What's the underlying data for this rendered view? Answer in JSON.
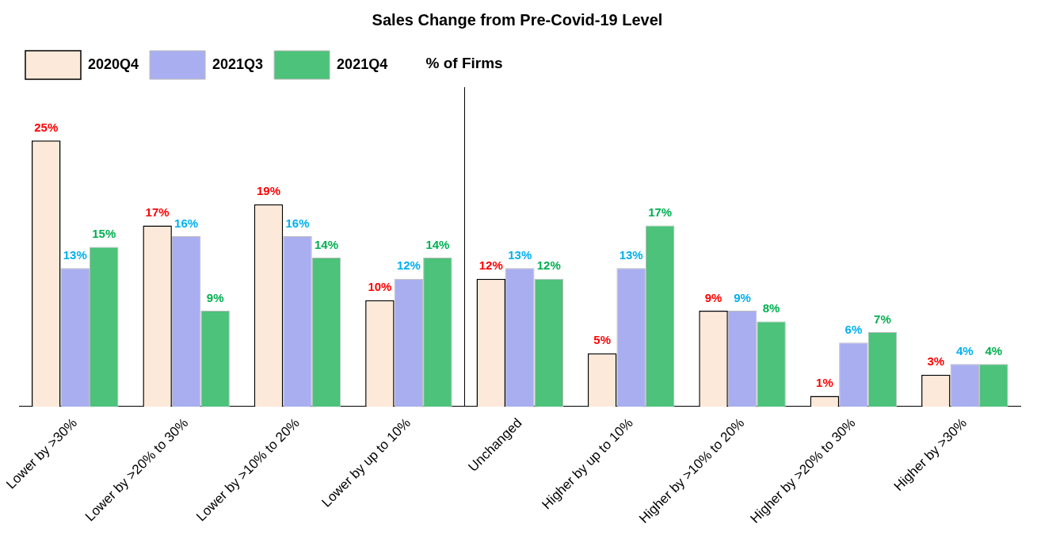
{
  "chart_data": {
    "type": "bar",
    "title": "Sales Change from Pre-Covid-19 Level",
    "ylabel": "% of Firms",
    "categories": [
      "Lower by >30%",
      "Lower by >20% to 30%",
      "Lower by >10% to 20%",
      "Lower by up to 10%",
      "Unchanged",
      "Higher by up to 10%",
      "Higher by >10% to 20%",
      "Higher by >20% to 30%",
      "Higher by >30%"
    ],
    "series": [
      {
        "name": "2020Q4",
        "color": "#fde9d9",
        "values": [
          25,
          17,
          19,
          10,
          12,
          5,
          9,
          1,
          3
        ],
        "value_labels": [
          "25%",
          "17%",
          "19%",
          "10%",
          "12%",
          "5%",
          "9%",
          "1%",
          "3%"
        ]
      },
      {
        "name": "2021Q3",
        "color": "#a9aef0",
        "values": [
          13,
          16,
          16,
          12,
          13,
          13,
          9,
          6,
          4
        ],
        "value_labels": [
          "13%",
          "16%",
          "16%",
          "12%",
          "13%",
          "13%",
          "9%",
          "6%",
          "4%"
        ]
      },
      {
        "name": "2021Q4",
        "color": "#4cc27a",
        "values": [
          15,
          9,
          14,
          14,
          12,
          17,
          8,
          7,
          4
        ],
        "value_labels": [
          "15%",
          "9%",
          "14%",
          "14%",
          "12%",
          "17%",
          "8%",
          "7%",
          "4%"
        ]
      }
    ],
    "legend": "top left"
  }
}
